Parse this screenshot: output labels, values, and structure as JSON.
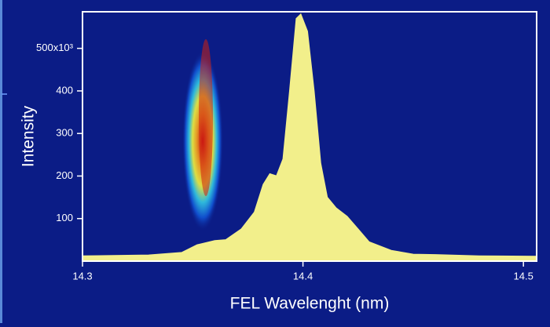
{
  "chart_data": {
    "type": "area",
    "x_label": "FEL Wavelenght (nm)",
    "y_label": "Intensity",
    "x": [
      14.3,
      14.33,
      14.345,
      14.352,
      14.36,
      14.365,
      14.372,
      14.378,
      14.382,
      14.385,
      14.388,
      14.391,
      14.394,
      14.397,
      14.399,
      14.402,
      14.405,
      14.408,
      14.411,
      14.415,
      14.42,
      14.425,
      14.43,
      14.44,
      14.45,
      14.46,
      14.48,
      14.506
    ],
    "values": [
      12,
      14,
      20,
      38,
      48,
      50,
      75,
      115,
      180,
      205,
      200,
      240,
      400,
      570,
      580,
      540,
      400,
      230,
      150,
      125,
      105,
      75,
      45,
      25,
      16,
      15,
      12,
      11
    ],
    "color": "#faf68c",
    "xlim": [
      14.3,
      14.506
    ],
    "ylim": [
      0,
      586
    ],
    "xticks": [
      14.3,
      14.4,
      14.5
    ],
    "yticks": [
      100,
      200,
      300,
      400,
      {
        "value": 500,
        "label": "500x10³"
      }
    ],
    "grid": false
  }
}
